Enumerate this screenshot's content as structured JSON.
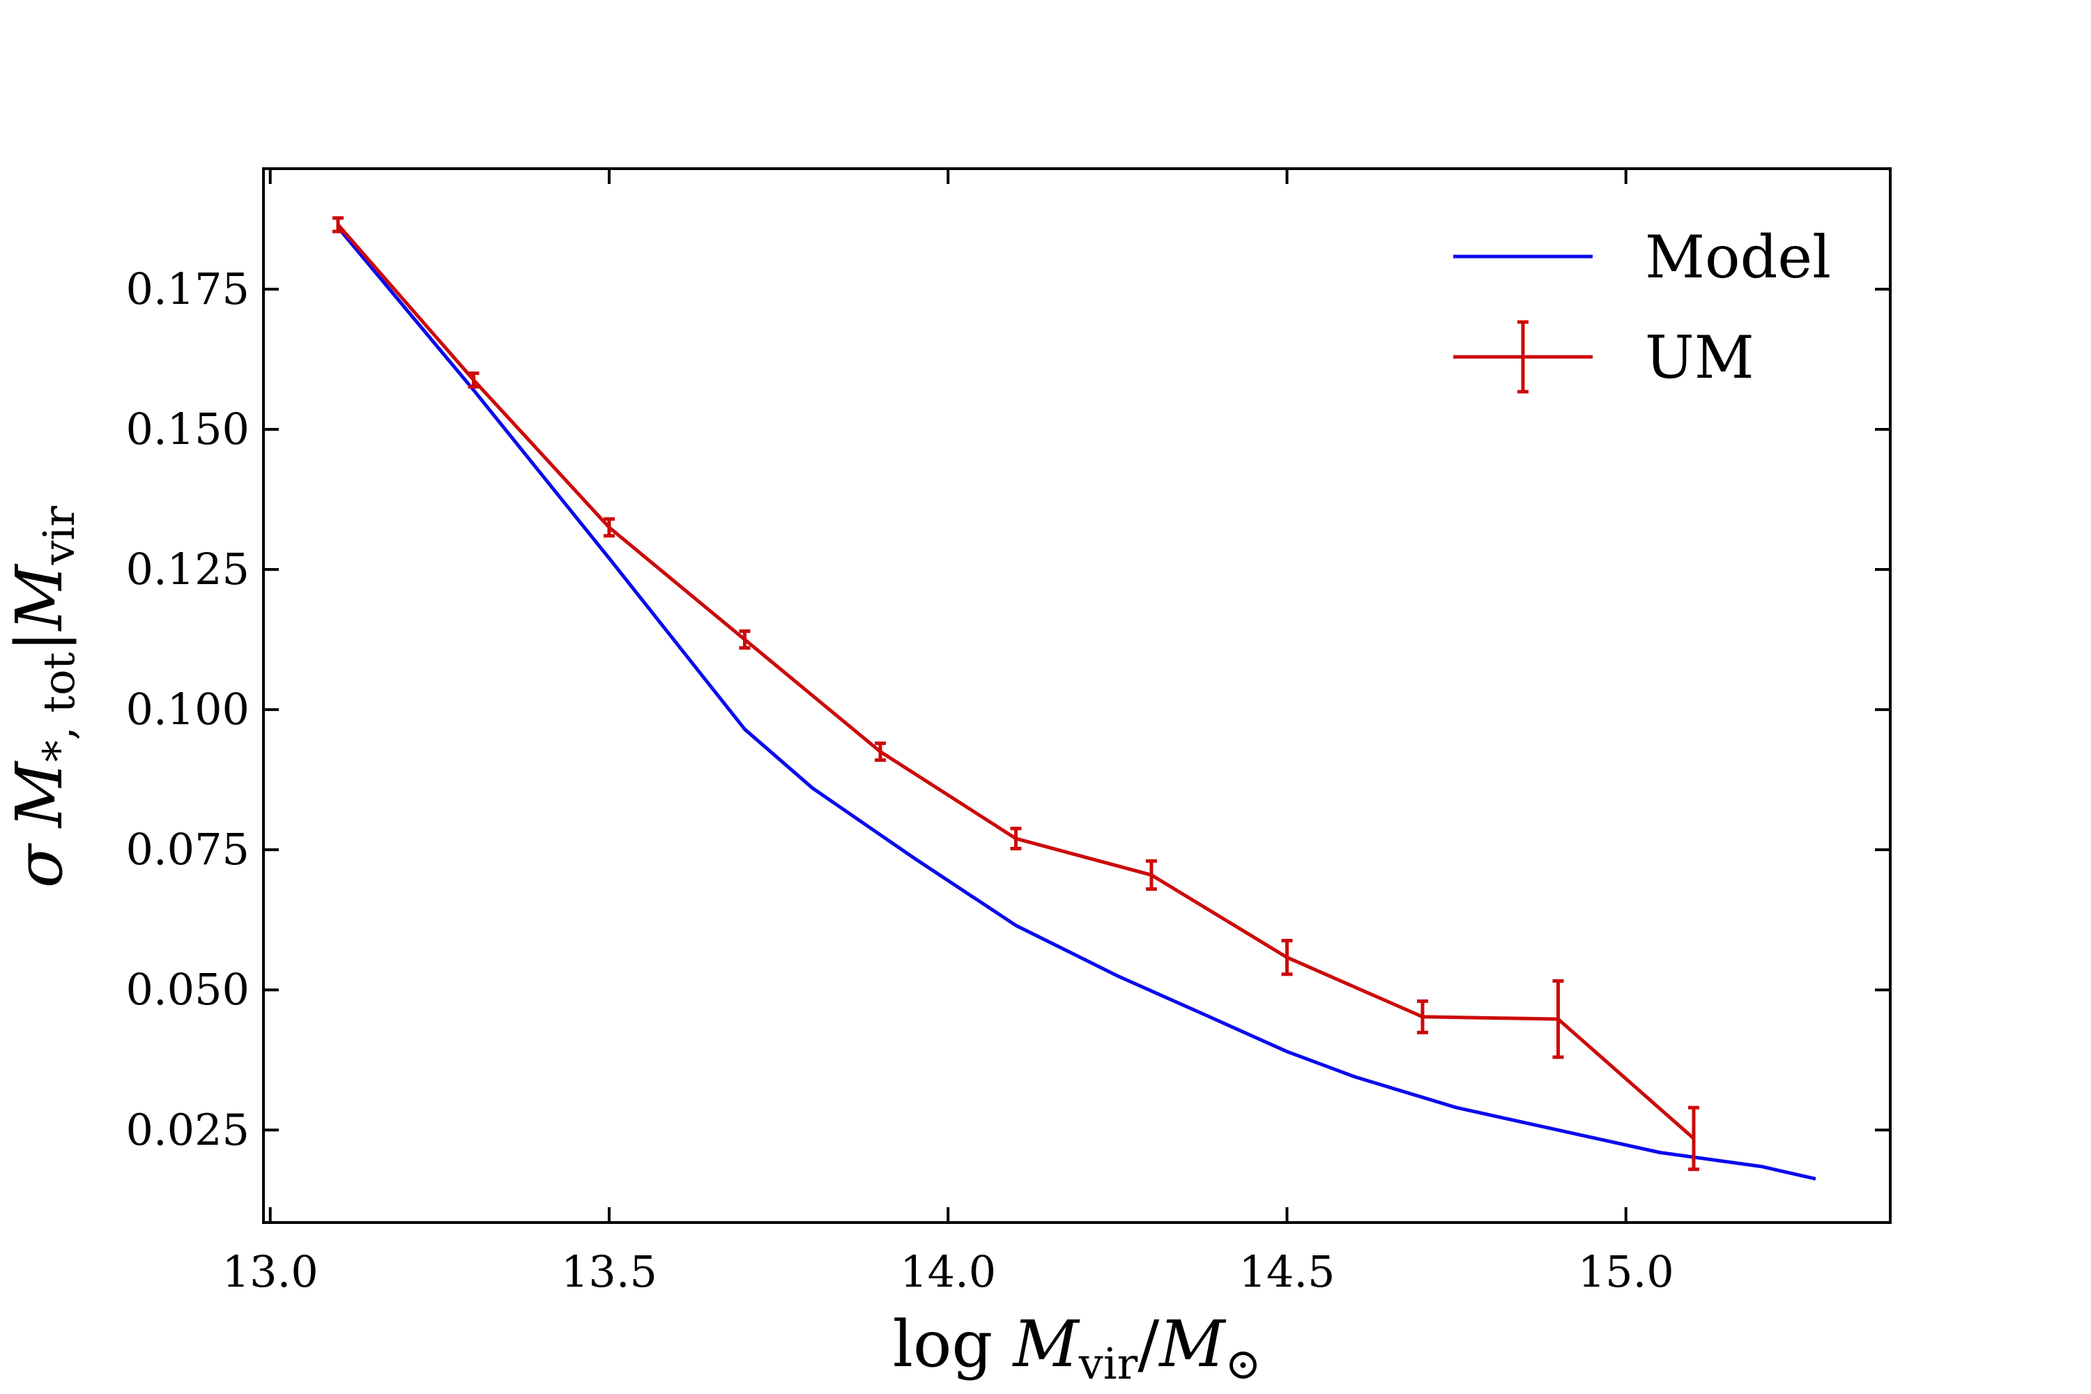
{
  "chart_data": {
    "type": "line",
    "title": "",
    "xlabel": "log M_vir/M_⊙",
    "ylabel": "σ M_*,tot|M_vir",
    "xlabel_parts": {
      "prefix": "log ",
      "var1": "M",
      "sub1": "vir",
      "sep": "/",
      "var2": "M",
      "sub2": "⊙"
    },
    "ylabel_parts": {
      "sigma": "σ",
      "var1": "M",
      "sub1": "*, tot",
      "sep": "|",
      "var2": "M",
      "sub2": "vir"
    },
    "xlim": [
      12.99,
      15.39
    ],
    "ylim": [
      0.0085,
      0.1965
    ],
    "xticks": [
      13.0,
      13.5,
      14.0,
      14.5,
      15.0
    ],
    "xtick_labels": [
      "13.0",
      "13.5",
      "14.0",
      "14.5",
      "15.0"
    ],
    "yticks": [
      0.025,
      0.05,
      0.075,
      0.1,
      0.125,
      0.15,
      0.175
    ],
    "ytick_labels": [
      "0.025",
      "0.050",
      "0.075",
      "0.100",
      "0.125",
      "0.150",
      "0.175"
    ],
    "grid": false,
    "legend_position": "top-right",
    "series": [
      {
        "name": "Model",
        "color": "#0a0aee",
        "x": [
          13.1,
          13.3,
          13.5,
          13.7,
          13.8,
          13.95,
          14.1,
          14.25,
          14.38,
          14.5,
          14.6,
          14.75,
          14.9,
          15.05,
          15.2,
          15.28
        ],
        "y": [
          0.186,
          0.157,
          0.127,
          0.0965,
          0.086,
          0.0735,
          0.0615,
          0.0525,
          0.0455,
          0.039,
          0.0345,
          0.029,
          0.025,
          0.021,
          0.0185,
          0.0163
        ],
        "error": null
      },
      {
        "name": "UM",
        "color": "#cc0a0a",
        "x": [
          13.1,
          13.3,
          13.5,
          13.7,
          13.9,
          14.1,
          14.3,
          14.5,
          14.7,
          14.9,
          15.1
        ],
        "y": [
          0.1865,
          0.1588,
          0.1325,
          0.1125,
          0.0925,
          0.077,
          0.0705,
          0.0558,
          0.0452,
          0.0448,
          0.0235
        ],
        "error": [
          0.0012,
          0.0012,
          0.0015,
          0.0015,
          0.0015,
          0.0018,
          0.0025,
          0.003,
          0.0028,
          0.0068,
          0.0055
        ]
      }
    ]
  }
}
